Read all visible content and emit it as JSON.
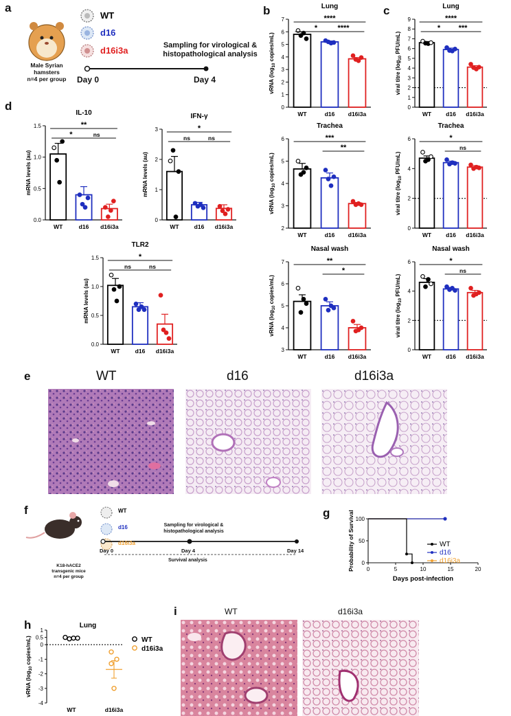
{
  "panel_letters": {
    "a": "a",
    "b": "b",
    "c": "c",
    "d": "d",
    "e": "e",
    "f": "f",
    "g": "g",
    "h": "h",
    "i": "i"
  },
  "panel_a": {
    "groups": [
      "WT",
      "d16",
      "d16i3a"
    ],
    "animal": "Male Syrian\nhamsters\nn=4 per group",
    "sampling": "Sampling for virological &\nhistopathological analysis",
    "day0": "Day 0",
    "day4": "Day 4"
  },
  "panel_f": {
    "groups": [
      "WT",
      "d16",
      "d16i3a"
    ],
    "animal": "K18-hACE2\ntransgenic mice\nn=4 per group",
    "sampling": "Sampling for virological &\nhistopathological analysis",
    "day0": "Day 0",
    "day4": "Day 4",
    "day14": "Day 14",
    "survival": "Survival analysis"
  },
  "panel_e": {
    "labels": [
      "WT",
      "d16",
      "d16i3a"
    ]
  },
  "panel_i": {
    "labels": [
      "WT",
      "d16i3a"
    ]
  },
  "colors": {
    "WT": "#000000",
    "d16": "#1f2fbf",
    "d16i3a": "#e02020",
    "mouse_d16i3a": "#f0a030"
  },
  "chart_data": [
    {
      "id": "b-lung",
      "type": "bar",
      "title": "Lung",
      "ylabel": "vRNA (log10 copies/mL)",
      "categories": [
        "WT",
        "d16",
        "d16i3a"
      ],
      "values": [
        5.8,
        5.2,
        3.85
      ],
      "errors": [
        0.2,
        0.07,
        0.1
      ],
      "ylim": [
        0,
        7
      ],
      "yticks": [
        "0",
        "1",
        "2",
        "3",
        "4",
        "5",
        "6",
        "7"
      ],
      "points": [
        [
          6.1,
          5.7,
          5.9,
          5.45
        ],
        [
          5.3,
          5.2,
          5.1,
          5.15
        ],
        [
          4.1,
          3.8,
          3.7,
          3.95
        ]
      ],
      "sig": [
        {
          "a": 0,
          "b": 2,
          "label": "****"
        },
        {
          "a": 0,
          "b": 1,
          "label": "*"
        },
        {
          "a": 1,
          "b": 2,
          "label": "****"
        }
      ]
    },
    {
      "id": "c-lung",
      "type": "bar",
      "title": "Lung",
      "ylabel": "viral titre (log10 PFU/mL)",
      "categories": [
        "WT",
        "d16",
        "d16i3a"
      ],
      "values": [
        6.6,
        5.9,
        4.1
      ],
      "errors": [
        0.12,
        0.15,
        0.15
      ],
      "ylim": [
        0,
        9
      ],
      "yticks": [
        "0",
        "1",
        "2",
        "3",
        "4",
        "5",
        "6",
        "7",
        "8",
        "9"
      ],
      "points": [
        [
          6.75,
          6.55,
          6.5,
          6.6
        ],
        [
          6.1,
          5.8,
          5.75,
          5.95
        ],
        [
          4.4,
          4.05,
          3.9,
          4.1
        ]
      ],
      "lod": 2,
      "sig": [
        {
          "a": 0,
          "b": 2,
          "label": "****"
        },
        {
          "a": 0,
          "b": 1,
          "label": "*"
        },
        {
          "a": 1,
          "b": 2,
          "label": "***"
        }
      ]
    },
    {
      "id": "b-trachea",
      "type": "bar",
      "title": "Trachea",
      "ylabel": "vRNA (log10 copies/mL)",
      "categories": [
        "WT",
        "d16",
        "d16i3a"
      ],
      "values": [
        4.65,
        4.25,
        3.1
      ],
      "errors": [
        0.25,
        0.22,
        0.05
      ],
      "ylim": [
        2,
        6
      ],
      "yticks": [
        "2",
        "3",
        "4",
        "5",
        "6"
      ],
      "points": [
        [
          5.0,
          4.4,
          4.5,
          4.7
        ],
        [
          4.6,
          4.2,
          3.9,
          4.3
        ],
        [
          3.2,
          3.05,
          3.1,
          3.05
        ]
      ],
      "sig": [
        {
          "a": 0,
          "b": 2,
          "label": "***"
        },
        {
          "a": 1,
          "b": 2,
          "label": "**"
        }
      ]
    },
    {
      "id": "c-trachea",
      "type": "bar",
      "title": "Trachea",
      "ylabel": "viral titre (log10 PFU/mL)",
      "categories": [
        "WT",
        "d16",
        "d16i3a"
      ],
      "values": [
        4.7,
        4.4,
        4.1
      ],
      "errors": [
        0.15,
        0.1,
        0.1
      ],
      "ylim": [
        0,
        6
      ],
      "yticks": [
        "0",
        "2",
        "4",
        "6"
      ],
      "points": [
        [
          5.1,
          4.5,
          4.6,
          4.8
        ],
        [
          4.6,
          4.3,
          4.4,
          4.35
        ],
        [
          4.25,
          4.0,
          4.1,
          4.05
        ]
      ],
      "lod": 2,
      "sig": [
        {
          "a": 0,
          "b": 2,
          "label": "*"
        },
        {
          "a": 1,
          "b": 2,
          "label": "ns"
        }
      ]
    },
    {
      "id": "b-nasal",
      "type": "bar",
      "title": "Nasal wash",
      "ylabel": "vRNA (log10 copies/mL)",
      "categories": [
        "WT",
        "d16",
        "d16i3a"
      ],
      "values": [
        5.2,
        5.0,
        4.0
      ],
      "errors": [
        0.3,
        0.18,
        0.15
      ],
      "ylim": [
        3,
        7
      ],
      "yticks": [
        "3",
        "4",
        "5",
        "6",
        "7"
      ],
      "points": [
        [
          5.8,
          4.7,
          5.3,
          5.1
        ],
        [
          5.3,
          4.8,
          5.0,
          4.9
        ],
        [
          4.3,
          3.85,
          3.9,
          4.0
        ]
      ],
      "sig": [
        {
          "a": 0,
          "b": 2,
          "label": "**"
        },
        {
          "a": 1,
          "b": 2,
          "label": "*"
        }
      ]
    },
    {
      "id": "c-nasal",
      "type": "bar",
      "title": "Nasal wash",
      "ylabel": "viral titre (log10 PFU/mL)",
      "categories": [
        "WT",
        "d16",
        "d16i3a"
      ],
      "values": [
        4.6,
        4.15,
        3.9
      ],
      "errors": [
        0.25,
        0.1,
        0.15
      ],
      "ylim": [
        0,
        6
      ],
      "yticks": [
        "0",
        "2",
        "4",
        "6"
      ],
      "points": [
        [
          5.0,
          4.3,
          4.8,
          4.5
        ],
        [
          4.3,
          4.1,
          4.2,
          4.05
        ],
        [
          4.2,
          3.7,
          3.8,
          3.9
        ]
      ],
      "lod": 2,
      "sig": [
        {
          "a": 0,
          "b": 2,
          "label": "*"
        },
        {
          "a": 1,
          "b": 2,
          "label": "ns"
        }
      ]
    },
    {
      "id": "d-il10",
      "type": "bar",
      "title": "IL-10",
      "ylabel": "mRNA levels (au)",
      "categories": [
        "WT",
        "d16",
        "d16i3a"
      ],
      "values": [
        1.05,
        0.4,
        0.18
      ],
      "errors": [
        0.17,
        0.13,
        0.07
      ],
      "ylim": [
        0,
        1.5
      ],
      "yticks": [
        "0.0",
        "0.5",
        "1.0",
        "1.5"
      ],
      "points": [
        [
          1.15,
          0.95,
          0.6,
          1.25
        ],
        [
          0.4,
          0.25,
          0.2,
          0.35
        ],
        [
          0.2,
          0.05,
          0.15,
          0.3
        ]
      ],
      "sig": [
        {
          "a": 0,
          "b": 2,
          "label": "**"
        },
        {
          "a": 0,
          "b": 1,
          "label": "*"
        },
        {
          "a": 1,
          "b": 2,
          "label": "ns"
        }
      ]
    },
    {
      "id": "d-ifng",
      "type": "bar",
      "title": "IFN-γ",
      "ylabel": "mRNA levels (au)",
      "categories": [
        "WT",
        "d16",
        "d16i3a"
      ],
      "values": [
        1.6,
        0.5,
        0.38
      ],
      "errors": [
        0.5,
        0.08,
        0.12
      ],
      "ylim": [
        0,
        3
      ],
      "yticks": [
        "0",
        "1",
        "2",
        "3"
      ],
      "points": [
        [
          1.95,
          2.3,
          0.1,
          1.6
        ],
        [
          0.55,
          0.45,
          0.5,
          0.4
        ],
        [
          0.45,
          0.3,
          0.2,
          0.35
        ]
      ],
      "sig": [
        {
          "a": 0,
          "b": 2,
          "label": "*"
        },
        {
          "a": 0,
          "b": 1,
          "label": "ns"
        },
        {
          "a": 1,
          "b": 2,
          "label": "ns"
        }
      ]
    },
    {
      "id": "d-tlr2",
      "type": "bar",
      "title": "TLR2",
      "ylabel": "mRNA levels (au)",
      "categories": [
        "WT",
        "d16",
        "d16i3a"
      ],
      "values": [
        1.02,
        0.65,
        0.35
      ],
      "errors": [
        0.12,
        0.07,
        0.17
      ],
      "ylim": [
        0,
        1.5
      ],
      "yticks": [
        "0.0",
        "0.5",
        "1.0",
        "1.5"
      ],
      "points": [
        [
          1.2,
          0.95,
          0.75,
          1.0
        ],
        [
          0.7,
          0.6,
          0.65,
          0.6
        ],
        [
          0.85,
          0.25,
          0.2,
          0.1
        ]
      ],
      "sig": [
        {
          "a": 0,
          "b": 2,
          "label": "*"
        },
        {
          "a": 0,
          "b": 1,
          "label": "ns"
        },
        {
          "a": 1,
          "b": 2,
          "label": "ns"
        }
      ]
    },
    {
      "id": "g-survival",
      "type": "line",
      "xlabel": "Days post-infection",
      "ylabel": "Probability of Survival",
      "xlim": [
        0,
        20
      ],
      "ylim": [
        0,
        100
      ],
      "xticks": [
        "0",
        "5",
        "10",
        "15",
        "20"
      ],
      "yticks": [
        "0",
        "50",
        "100"
      ],
      "legend": "top-right",
      "series": [
        {
          "name": "WT",
          "x": [
            0,
            7,
            7,
            8,
            8
          ],
          "y": [
            100,
            100,
            20,
            20,
            0
          ]
        },
        {
          "name": "d16",
          "x": [
            0,
            14
          ],
          "y": [
            100,
            100
          ]
        },
        {
          "name": "d16i3a",
          "x": [
            0,
            14
          ],
          "y": [
            100,
            100
          ]
        }
      ]
    },
    {
      "id": "h-lung",
      "type": "scatter",
      "title": "Lung",
      "ylabel": "vRNA (log10 copies/mL)",
      "categories": [
        "WT",
        "d16i3a"
      ],
      "ylim": [
        -4,
        1
      ],
      "yticks": [
        "-4",
        "-3",
        "-2",
        "-1",
        "0",
        "0.5",
        "1"
      ],
      "means": [
        0.45,
        -1.7
      ],
      "errors": [
        0.05,
        0.6
      ],
      "points": [
        [
          0.5,
          0.4,
          0.45,
          0.45
        ],
        [
          -0.5,
          -1.0,
          -1.3,
          -3.0
        ]
      ],
      "legend": "right"
    }
  ]
}
